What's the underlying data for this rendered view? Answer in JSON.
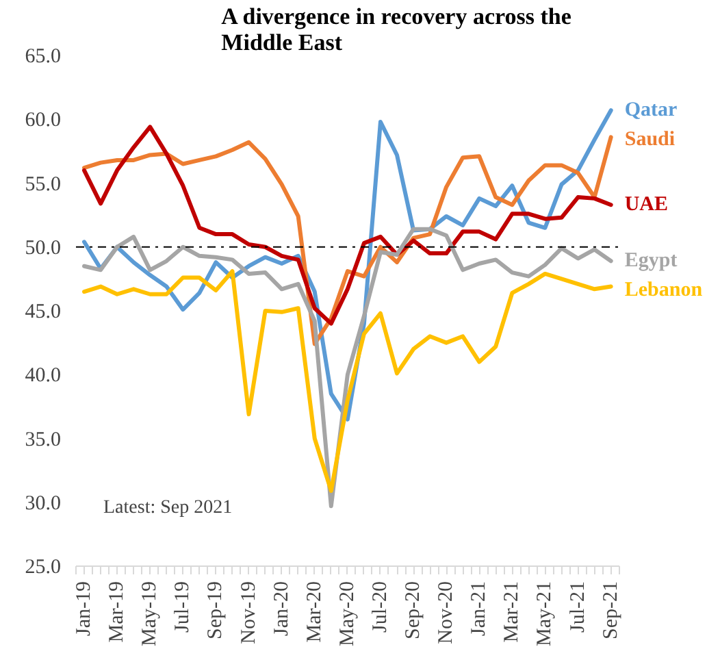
{
  "chart_data": {
    "type": "line",
    "title": "A divergence in recovery across the Middle East",
    "categories": [
      "Jan-19",
      null,
      "Mar-19",
      null,
      "May-19",
      null,
      "Jul-19",
      null,
      "Sep-19",
      null,
      "Nov-19",
      null,
      "Jan-20",
      null,
      "Mar-20",
      null,
      "May-20",
      null,
      "Jul-20",
      null,
      "Sep-20",
      null,
      "Nov-20",
      null,
      "Jan-21",
      null,
      "Mar-21",
      null,
      "May-21",
      null,
      "Jul-21",
      null,
      "Sep-21"
    ],
    "series": [
      {
        "name": "Qatar",
        "color": "#5b9bd5",
        "values": [
          50.4,
          48.3,
          50.0,
          48.8,
          47.8,
          46.9,
          45.1,
          46.4,
          48.8,
          47.6,
          48.5,
          49.2,
          48.7,
          49.3,
          46.5,
          38.5,
          36.5,
          44.0,
          59.8,
          57.2,
          51.3,
          51.4,
          52.4,
          51.7,
          53.8,
          53.2,
          54.8,
          51.9,
          51.5,
          54.9,
          56.0,
          58.4,
          60.7
        ]
      },
      {
        "name": "Saudi",
        "color": "#ed7d31",
        "values": [
          56.2,
          56.6,
          56.8,
          56.8,
          57.2,
          57.3,
          56.5,
          56.8,
          57.1,
          57.6,
          58.2,
          56.9,
          54.9,
          52.4,
          42.4,
          44.4,
          48.1,
          47.7,
          50.0,
          48.8,
          50.7,
          51.0,
          54.7,
          57.0,
          57.1,
          53.9,
          53.3,
          55.2,
          56.4,
          56.4,
          55.8,
          53.9,
          58.6
        ]
      },
      {
        "name": "UAE",
        "color": "#c00000",
        "values": [
          56.0,
          53.4,
          56.0,
          57.8,
          59.4,
          57.3,
          54.8,
          51.5,
          51.0,
          51.0,
          50.2,
          50.0,
          49.3,
          49.0,
          45.2,
          44.0,
          46.7,
          50.3,
          50.8,
          49.4,
          50.5,
          49.5,
          49.5,
          51.2,
          51.2,
          50.6,
          52.6,
          52.6,
          52.2,
          52.3,
          53.9,
          53.8,
          53.3
        ]
      },
      {
        "name": "Egypt",
        "color": "#a5a5a5",
        "values": [
          48.5,
          48.2,
          50.0,
          50.8,
          48.2,
          48.9,
          50.0,
          49.3,
          49.2,
          49.0,
          47.9,
          48.0,
          46.7,
          47.1,
          44.2,
          29.7,
          40.0,
          44.6,
          49.6,
          49.4,
          51.4,
          51.4,
          50.9,
          48.2,
          48.7,
          49.0,
          48.0,
          47.7,
          48.6,
          49.9,
          49.1,
          49.8,
          48.9
        ]
      },
      {
        "name": "Lebanon",
        "color": "#ffc000",
        "values": [
          46.5,
          46.9,
          46.3,
          46.7,
          46.3,
          46.3,
          47.6,
          47.6,
          46.6,
          48.1,
          36.9,
          45.0,
          44.9,
          45.2,
          35.0,
          30.9,
          38.0,
          43.2,
          44.8,
          40.1,
          42.0,
          43.0,
          42.5,
          43.0,
          41.0,
          42.2,
          46.4,
          47.1,
          47.9,
          47.5,
          47.1,
          46.7,
          46.9
        ]
      }
    ],
    "ylim": [
      25,
      65
    ],
    "yticks": [
      {
        "value": 25,
        "label": "25.0"
      },
      {
        "value": 30,
        "label": "30.0"
      },
      {
        "value": 35,
        "label": "35.0"
      },
      {
        "value": 40,
        "label": "40.0"
      },
      {
        "value": 45,
        "label": "45.0"
      },
      {
        "value": 50,
        "label": "50.0"
      },
      {
        "value": 55,
        "label": "55.0"
      },
      {
        "value": 60,
        "label": "60.0"
      },
      {
        "value": 65,
        "label": "65.0"
      }
    ],
    "ref_lines": [
      {
        "axis": "y",
        "value": 50,
        "color": "#000000",
        "line_style": "dashdot"
      }
    ],
    "annotations": [
      "Latest: Sep 2021"
    ],
    "grid": false,
    "marker": "none",
    "line_style": "solid"
  }
}
